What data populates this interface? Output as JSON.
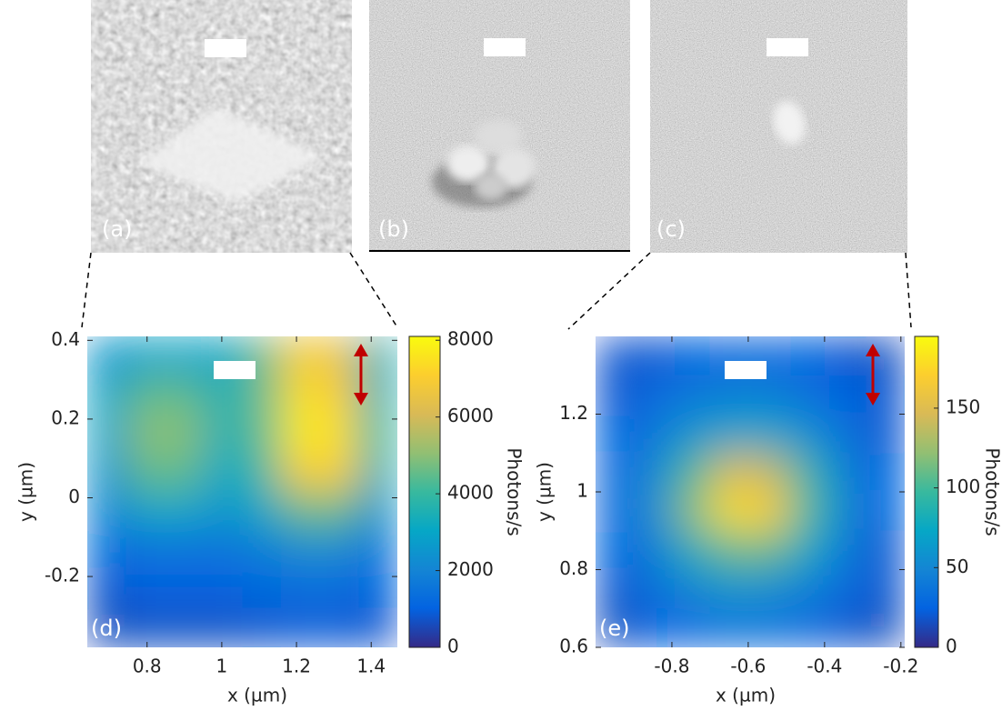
{
  "images": [
    {
      "label": "(a)"
    },
    {
      "label": "(b)"
    },
    {
      "label": "(c)"
    }
  ],
  "chart_data": [
    {
      "type": "heatmap",
      "label": "(d)",
      "x_label": "x (µm)",
      "y_label": "y (µm)",
      "colorbar_label": "Photons/s",
      "xlim": [
        0.64,
        1.47
      ],
      "ylim": [
        -0.38,
        0.41
      ],
      "xticks": [
        0.8,
        1,
        1.2,
        1.4
      ],
      "yticks": [
        -0.2,
        0,
        0.2,
        0.4
      ],
      "clim": [
        0,
        8100
      ],
      "cticks": [
        0,
        2000,
        4000,
        6000,
        8000
      ],
      "colormap": [
        "#352a87",
        "#0363e1",
        "#1485d4",
        "#06a7c6",
        "#38b99e",
        "#92bf73",
        "#d9ba56",
        "#fcce2e",
        "#f9fb0e"
      ],
      "values": [
        [
          2500,
          3000,
          3000,
          3000,
          4500,
          7000,
          6500,
          3500
        ],
        [
          3000,
          4500,
          4500,
          3500,
          4500,
          7500,
          7000,
          3500
        ],
        [
          3000,
          5000,
          5000,
          3500,
          4500,
          7800,
          7500,
          4000
        ],
        [
          2500,
          4500,
          4500,
          3000,
          4000,
          7000,
          7000,
          3500
        ],
        [
          2000,
          3000,
          3000,
          2500,
          3000,
          4500,
          4500,
          2500
        ],
        [
          1200,
          1500,
          1500,
          1500,
          1800,
          2200,
          2200,
          1500
        ],
        [
          800,
          1000,
          1000,
          1000,
          1200,
          1300,
          1300,
          1000
        ],
        [
          600,
          700,
          700,
          700,
          800,
          900,
          900,
          800
        ]
      ]
    },
    {
      "type": "heatmap",
      "label": "(e)",
      "x_label": "x (µm)",
      "y_label": "y (µm)",
      "colorbar_label": "Photons/s",
      "xlim": [
        -1.0,
        -0.19
      ],
      "ylim": [
        0.6,
        1.4
      ],
      "xticks": [
        -0.8,
        -0.6,
        -0.4,
        -0.2
      ],
      "yticks": [
        0.6,
        0.8,
        1,
        1.2
      ],
      "clim": [
        0,
        195
      ],
      "cticks": [
        0,
        50,
        100,
        150
      ],
      "colormap": [
        "#352a87",
        "#0363e1",
        "#1485d4",
        "#06a7c6",
        "#38b99e",
        "#92bf73",
        "#d9ba56",
        "#fcce2e",
        "#f9fb0e"
      ],
      "values": [
        [
          20,
          20,
          25,
          30,
          30,
          25,
          20,
          15
        ],
        [
          20,
          30,
          40,
          45,
          45,
          35,
          25,
          20
        ],
        [
          25,
          40,
          60,
          70,
          70,
          55,
          35,
          20
        ],
        [
          30,
          50,
          100,
          150,
          140,
          90,
          45,
          25
        ],
        [
          30,
          55,
          120,
          180,
          170,
          100,
          50,
          25
        ],
        [
          25,
          45,
          80,
          110,
          110,
          75,
          40,
          20
        ],
        [
          20,
          35,
          50,
          60,
          55,
          45,
          30,
          20
        ],
        [
          15,
          25,
          30,
          35,
          35,
          30,
          20,
          15
        ]
      ]
    }
  ]
}
